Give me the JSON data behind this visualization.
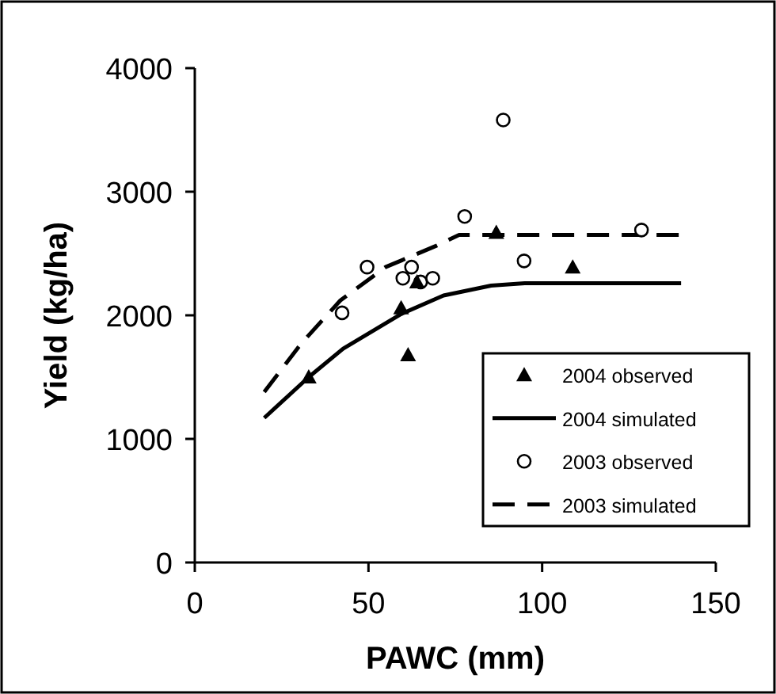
{
  "chart_data": {
    "type": "scatter",
    "xlabel": "PAWC (mm)",
    "ylabel": "Yield (kg/ha)",
    "xlim": [
      0,
      150
    ],
    "ylim": [
      0,
      4000
    ],
    "xticks": [
      0,
      50,
      100,
      150
    ],
    "yticks": [
      0,
      1000,
      2000,
      3000,
      4000
    ],
    "grid": false,
    "legend": "bottom right",
    "series": [
      {
        "name": "2004 observed",
        "marker": "triangle",
        "color": "#000000",
        "x": [
          32.8,
          59.4,
          61.4,
          64,
          86.8,
          108.8
        ],
        "values": [
          1500,
          2060,
          1680,
          2270,
          2670,
          2390
        ]
      },
      {
        "name": "2004 simulated",
        "type": "line",
        "marker": "none",
        "line_style": "solid",
        "color": "#000000",
        "x": [
          20,
          32.8,
          42.7,
          59.4,
          71.6,
          85.3,
          95,
          140
        ],
        "values": [
          1170,
          1500,
          1730,
          2010,
          2160,
          2240,
          2260,
          2260
        ]
      },
      {
        "name": "2003 observed",
        "marker": "circle",
        "color": "#000000",
        "x": [
          42.4,
          49.6,
          59.9,
          62.4,
          65,
          68.5,
          77.7,
          88.8,
          94.8,
          128.6
        ],
        "values": [
          2020,
          2390,
          2300,
          2390,
          2270,
          2300,
          2800,
          3580,
          2440,
          2690
        ]
      },
      {
        "name": "2003 simulated",
        "type": "line",
        "marker": "none",
        "line_style": "dashed",
        "color": "#000000",
        "x": [
          20,
          30.6,
          41.9,
          54.9,
          69.3,
          76.1,
          140
        ],
        "values": [
          1380,
          1770,
          2120,
          2390,
          2560,
          2650,
          2650
        ]
      }
    ]
  }
}
